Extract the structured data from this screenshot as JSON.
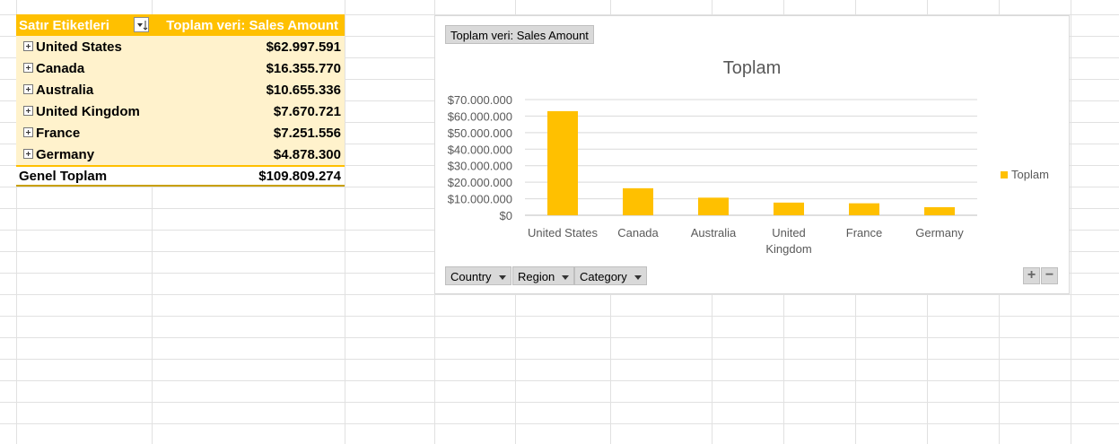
{
  "pivot": {
    "header_label": "Satır Etiketleri",
    "header_value": "Toplam veri: Sales Amount",
    "rows": [
      {
        "label": "United States",
        "value": "$62.997.591"
      },
      {
        "label": "Canada",
        "value": "$16.355.770"
      },
      {
        "label": "Australia",
        "value": "$10.655.336"
      },
      {
        "label": "United Kingdom",
        "value": "$7.670.721"
      },
      {
        "label": "France",
        "value": "$7.251.556"
      },
      {
        "label": "Germany",
        "value": "$4.878.300"
      }
    ],
    "total_label": "Genel Toplam",
    "total_value": "$109.809.274"
  },
  "chart": {
    "value_field_button": "Toplam veri: Sales Amount",
    "axis_field_buttons": [
      "Country",
      "Region",
      "Category"
    ],
    "zoom_in": "+",
    "zoom_out": "−"
  },
  "chart_data": {
    "type": "bar",
    "title": "Toplam",
    "categories": [
      "United States",
      "Canada",
      "Australia",
      "United Kingdom",
      "France",
      "Germany"
    ],
    "series": [
      {
        "name": "Toplam",
        "values": [
          62997591,
          16355770,
          10655336,
          7670721,
          7251556,
          4878300
        ]
      }
    ],
    "ylim": [
      0,
      70000000
    ],
    "yticks": [
      "$0",
      "$10.000.000",
      "$20.000.000",
      "$30.000.000",
      "$40.000.000",
      "$50.000.000",
      "$60.000.000",
      "$70.000.000"
    ],
    "grid": true,
    "legend": "right",
    "bar_color": "#ffc000"
  }
}
